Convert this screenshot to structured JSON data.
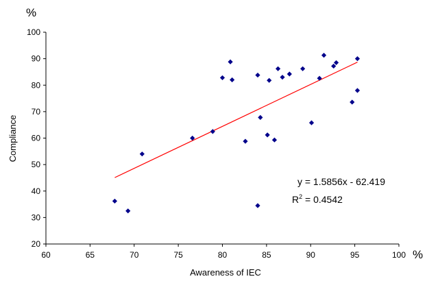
{
  "chart_data": {
    "type": "scatter",
    "title": "",
    "xlabel": "Awareness of IEC",
    "ylabel": "Compliance",
    "x_unit_label": "%",
    "y_unit_label": "%",
    "xlim": [
      60,
      100
    ],
    "ylim": [
      20,
      100
    ],
    "x_ticks": [
      "60",
      "65",
      "70",
      "75",
      "80",
      "85",
      "90",
      "95",
      "100"
    ],
    "y_ticks": [
      "20",
      "30",
      "40",
      "50",
      "60",
      "70",
      "80",
      "90",
      "100"
    ],
    "grid": false,
    "marker_color": "#00008B",
    "series": [
      {
        "points": [
          {
            "x": 67.8,
            "y": 36.2
          },
          {
            "x": 69.3,
            "y": 32.5
          },
          {
            "x": 70.9,
            "y": 54.0
          },
          {
            "x": 76.6,
            "y": 60.0
          },
          {
            "x": 78.9,
            "y": 62.5
          },
          {
            "x": 80.0,
            "y": 82.8
          },
          {
            "x": 80.9,
            "y": 88.8
          },
          {
            "x": 81.1,
            "y": 82.0
          },
          {
            "x": 82.6,
            "y": 58.8
          },
          {
            "x": 84.0,
            "y": 83.8
          },
          {
            "x": 84.0,
            "y": 34.5
          },
          {
            "x": 84.3,
            "y": 67.8
          },
          {
            "x": 85.1,
            "y": 61.2
          },
          {
            "x": 85.3,
            "y": 81.8
          },
          {
            "x": 85.9,
            "y": 59.3
          },
          {
            "x": 86.3,
            "y": 86.2
          },
          {
            "x": 86.8,
            "y": 83.0
          },
          {
            "x": 87.6,
            "y": 84.2
          },
          {
            "x": 89.1,
            "y": 86.2
          },
          {
            "x": 90.1,
            "y": 65.8
          },
          {
            "x": 91.0,
            "y": 82.6
          },
          {
            "x": 91.5,
            "y": 91.3
          },
          {
            "x": 92.6,
            "y": 87.2
          },
          {
            "x": 92.9,
            "y": 88.5
          },
          {
            "x": 94.7,
            "y": 73.6
          },
          {
            "x": 95.3,
            "y": 78.0
          },
          {
            "x": 95.3,
            "y": 90.0
          }
        ]
      }
    ],
    "trendline": {
      "x_range": [
        67.8,
        95.3
      ],
      "slope": 1.5856,
      "intercept": -62.419,
      "color": "#FF0000",
      "equation_label": "y = 1.5856x - 62.419",
      "r2_prefix": "R",
      "r2_exponent": "2",
      "r2_suffix": " = 0.4542"
    }
  }
}
